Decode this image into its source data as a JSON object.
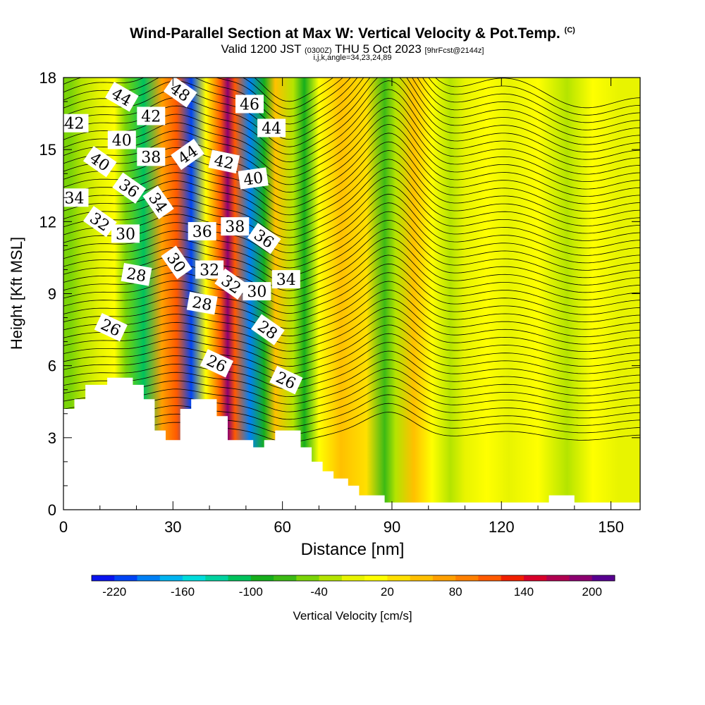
{
  "title": "Wind-Parallel Section at Max W: Vertical Velocity & Pot.Temp.",
  "title_mark": "(C)",
  "subtitle_valid": "Valid 1200 JST",
  "subtitle_utc": "(0300Z)",
  "subtitle_date": "THU 5 Oct 2023",
  "subtitle_fcst": "[9hrFcst@2144z]",
  "subtitle_ijk": "i,j,k,angle=34,23,24,89",
  "chart_data": {
    "type": "heatmap",
    "xlabel": "Distance [nm]",
    "ylabel": "Height [Kft MSL]",
    "xlim": [
      0,
      158
    ],
    "ylim": [
      0,
      18
    ],
    "x_ticks": [
      0,
      30,
      60,
      90,
      120,
      150
    ],
    "y_ticks": [
      0,
      3,
      6,
      9,
      12,
      15,
      18
    ],
    "colorbar": {
      "title": "Vertical Velocity [cm/s]",
      "tick_labels": [
        -220,
        -160,
        -100,
        -40,
        20,
        80,
        140,
        200
      ],
      "colors": [
        "#0a14ee",
        "#0044f4",
        "#0080f5",
        "#00b4f0",
        "#00dcdc",
        "#00d2a0",
        "#00c25c",
        "#16ae1c",
        "#3cba14",
        "#7ad408",
        "#b4e400",
        "#e8f400",
        "#ffff00",
        "#ffe000",
        "#ffc000",
        "#ffa000",
        "#ff8000",
        "#ff5a00",
        "#f02000",
        "#d8002a",
        "#b00050",
        "#8c0070",
        "#580090"
      ]
    },
    "vertical_velocity_bands": [
      {
        "x": 2,
        "w": -40
      },
      {
        "x": 5,
        "w": -20
      },
      {
        "x": 10,
        "w": 5
      },
      {
        "x": 14,
        "w": 15
      },
      {
        "x": 17,
        "w": -50
      },
      {
        "x": 22,
        "w": -110
      },
      {
        "x": 27,
        "w": 80
      },
      {
        "x": 31,
        "w": 110
      },
      {
        "x": 35,
        "w": -200
      },
      {
        "x": 39,
        "w": 20
      },
      {
        "x": 43,
        "w": 120
      },
      {
        "x": 45,
        "w": 190
      },
      {
        "x": 47,
        "w": 120
      },
      {
        "x": 51,
        "w": -190
      },
      {
        "x": 55,
        "w": -80
      },
      {
        "x": 58,
        "w": 60
      },
      {
        "x": 63,
        "w": -30
      },
      {
        "x": 66,
        "w": -90
      },
      {
        "x": 70,
        "w": 20
      },
      {
        "x": 76,
        "w": 60
      },
      {
        "x": 83,
        "w": 40
      },
      {
        "x": 88,
        "w": -60
      },
      {
        "x": 91,
        "w": -20
      },
      {
        "x": 96,
        "w": 60
      },
      {
        "x": 101,
        "w": 30
      },
      {
        "x": 106,
        "w": -30
      },
      {
        "x": 110,
        "w": 0
      },
      {
        "x": 116,
        "w": 20
      },
      {
        "x": 122,
        "w": -10
      },
      {
        "x": 130,
        "w": 15
      },
      {
        "x": 138,
        "w": -15
      },
      {
        "x": 145,
        "w": 10
      },
      {
        "x": 152,
        "w": -10
      },
      {
        "x": 158,
        "w": 5
      }
    ],
    "terrain": [
      [
        0,
        4.2
      ],
      [
        3,
        4.2
      ],
      [
        3,
        4.6
      ],
      [
        6,
        4.6
      ],
      [
        6,
        5.2
      ],
      [
        12,
        5.2
      ],
      [
        12,
        5.5
      ],
      [
        19,
        5.5
      ],
      [
        19,
        5.2
      ],
      [
        22,
        5.2
      ],
      [
        22,
        4.6
      ],
      [
        25,
        4.6
      ],
      [
        25,
        3.3
      ],
      [
        28,
        3.3
      ],
      [
        28,
        2.9
      ],
      [
        32,
        2.9
      ],
      [
        32,
        4.2
      ],
      [
        35,
        4.2
      ],
      [
        35,
        4.6
      ],
      [
        42,
        4.6
      ],
      [
        42,
        3.9
      ],
      [
        45,
        3.9
      ],
      [
        45,
        2.9
      ],
      [
        52,
        2.9
      ],
      [
        52,
        2.6
      ],
      [
        55,
        2.6
      ],
      [
        55,
        2.9
      ],
      [
        58,
        2.9
      ],
      [
        58,
        3.3
      ],
      [
        65,
        3.3
      ],
      [
        65,
        2.6
      ],
      [
        68,
        2.6
      ],
      [
        68,
        2.0
      ],
      [
        71,
        2.0
      ],
      [
        71,
        1.6
      ],
      [
        74,
        1.6
      ],
      [
        74,
        1.3
      ],
      [
        78,
        1.3
      ],
      [
        78,
        1.0
      ],
      [
        81,
        1.0
      ],
      [
        81,
        0.6
      ],
      [
        88,
        0.6
      ],
      [
        88,
        0.3
      ],
      [
        100,
        0.3
      ],
      [
        133,
        0.3
      ],
      [
        133,
        0.6
      ],
      [
        140,
        0.6
      ],
      [
        140,
        0.3
      ],
      [
        158,
        0.3
      ]
    ],
    "theta_labels": [
      {
        "text": "42",
        "x": 3,
        "y": 16.1,
        "rot": 0
      },
      {
        "text": "44",
        "x": 16,
        "y": 17.2,
        "rot": 30
      },
      {
        "text": "40",
        "x": 16,
        "y": 15.4,
        "rot": 0
      },
      {
        "text": "42",
        "x": 24,
        "y": 16.4,
        "rot": 0
      },
      {
        "text": "48",
        "x": 32,
        "y": 17.4,
        "rot": 35
      },
      {
        "text": "40",
        "x": 10,
        "y": 14.5,
        "rot": 35
      },
      {
        "text": "38",
        "x": 24,
        "y": 14.7,
        "rot": 0
      },
      {
        "text": "44",
        "x": 34,
        "y": 14.8,
        "rot": -35
      },
      {
        "text": "46",
        "x": 51,
        "y": 16.9,
        "rot": 0
      },
      {
        "text": "44",
        "x": 57,
        "y": 15.9,
        "rot": 0
      },
      {
        "text": "42",
        "x": 44,
        "y": 14.5,
        "rot": 12
      },
      {
        "text": "40",
        "x": 52,
        "y": 13.8,
        "rot": -8
      },
      {
        "text": "34",
        "x": 3,
        "y": 13.0,
        "rot": 0
      },
      {
        "text": "36",
        "x": 18,
        "y": 13.4,
        "rot": 35
      },
      {
        "text": "34",
        "x": 26,
        "y": 12.8,
        "rot": 55
      },
      {
        "text": "32",
        "x": 10,
        "y": 12.0,
        "rot": 35
      },
      {
        "text": "30",
        "x": 17,
        "y": 11.5,
        "rot": 0
      },
      {
        "text": "36",
        "x": 38,
        "y": 11.6,
        "rot": 0
      },
      {
        "text": "38",
        "x": 47,
        "y": 11.8,
        "rot": 0
      },
      {
        "text": "36",
        "x": 55,
        "y": 11.3,
        "rot": 35
      },
      {
        "text": "30",
        "x": 31,
        "y": 10.3,
        "rot": 55
      },
      {
        "text": "32",
        "x": 40,
        "y": 10.0,
        "rot": 0
      },
      {
        "text": "28",
        "x": 20,
        "y": 9.8,
        "rot": 10
      },
      {
        "text": "32",
        "x": 46,
        "y": 9.4,
        "rot": 35
      },
      {
        "text": "30",
        "x": 53,
        "y": 9.1,
        "rot": 0
      },
      {
        "text": "34",
        "x": 61,
        "y": 9.6,
        "rot": 0
      },
      {
        "text": "28",
        "x": 38,
        "y": 8.6,
        "rot": 10
      },
      {
        "text": "26",
        "x": 13,
        "y": 7.6,
        "rot": 25
      },
      {
        "text": "28",
        "x": 56,
        "y": 7.5,
        "rot": 35
      },
      {
        "text": "26",
        "x": 42,
        "y": 6.1,
        "rot": 25
      },
      {
        "text": "26",
        "x": 61,
        "y": 5.4,
        "rot": 25
      }
    ]
  }
}
